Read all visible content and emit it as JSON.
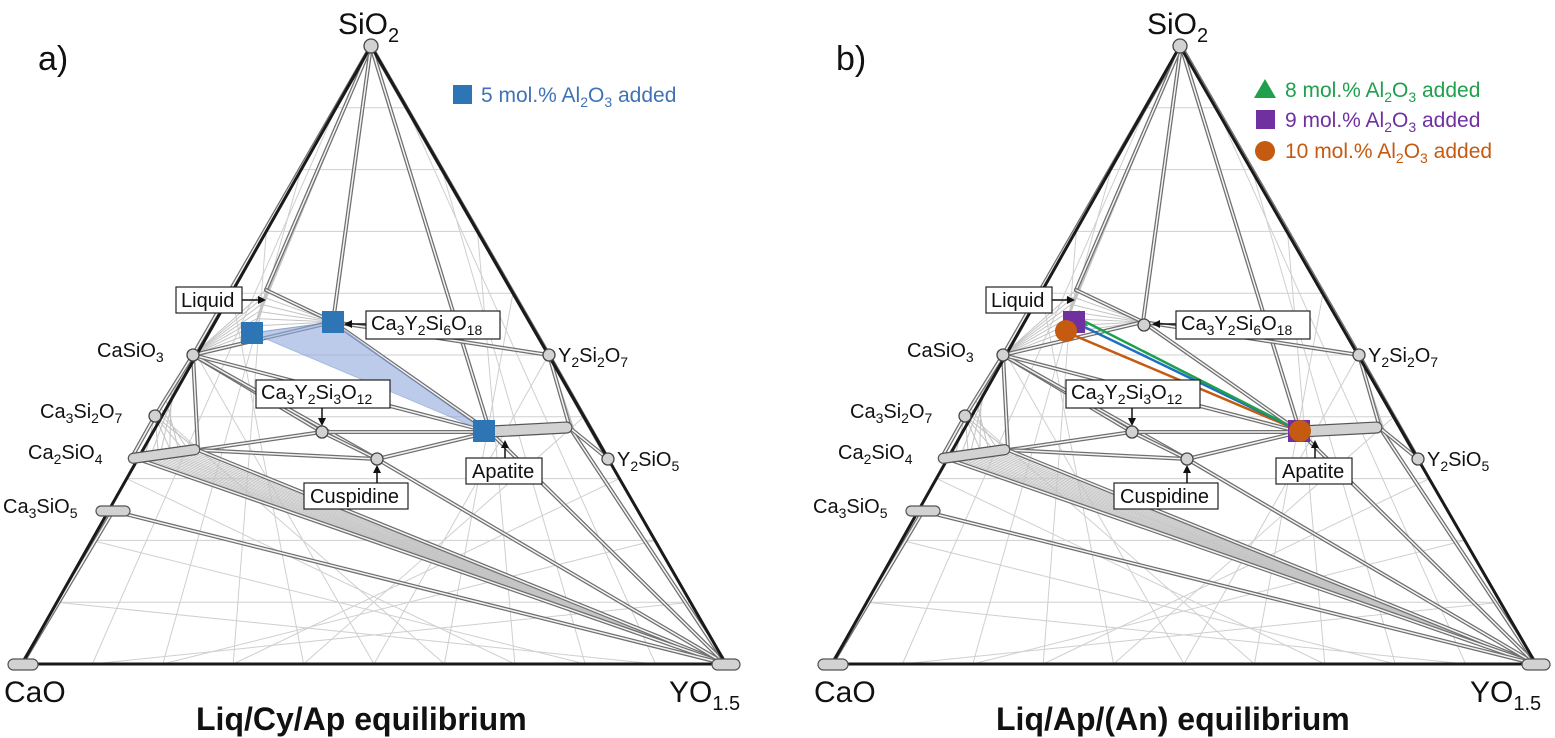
{
  "panels": [
    {
      "panel_label": "a)",
      "title": "Liq/Cy/Ap equilibrium",
      "corners": {
        "top_main": "SiO",
        "top_sub": "2",
        "left": "CaO",
        "right_main": "YO",
        "right_sub": "1.5"
      },
      "phases": {
        "casio3": {
          "a": "CaSiO",
          "b": "3"
        },
        "ca3si2o7": {
          "a": "Ca",
          "b": "3",
          "c": "Si",
          "d": "2",
          "e": "O",
          "f": "7"
        },
        "ca2sio4": {
          "a": "Ca",
          "b": "2",
          "c": "SiO",
          "d": "4"
        },
        "ca3sio5": {
          "a": "Ca",
          "b": "3",
          "c": "SiO",
          "d": "5"
        },
        "y2si2o7": {
          "a": "Y",
          "b": "2",
          "c": "Si",
          "d": "2",
          "e": "O",
          "f": "7"
        },
        "y2sio5": {
          "a": "Y",
          "b": "2",
          "c": "SiO",
          "d": "5"
        }
      },
      "boxes": {
        "liquid": "Liquid",
        "ca3y2si6o18": {
          "a": "Ca",
          "b": "3",
          "c": "Y",
          "d": "2",
          "e": "Si",
          "f": "6",
          "g": "O",
          "h": "18"
        },
        "ca3y2si3o12": {
          "a": "Ca",
          "b": "3",
          "c": "Y",
          "d": "2",
          "e": "Si",
          "f": "3",
          "g": "O",
          "h": "12"
        },
        "cuspidine": "Cuspidine",
        "apatite": "Apatite"
      },
      "legend": [
        {
          "pre": "5 mol.% Al",
          "s1": "2",
          "mid": "O",
          "s2": "3",
          "post": " added",
          "color": "#3f72b8",
          "marker": "square"
        }
      ]
    },
    {
      "panel_label": "b)",
      "title": "Liq/Ap/(An) equilibrium",
      "corners": {
        "top_main": "SiO",
        "top_sub": "2",
        "left": "CaO",
        "right_main": "YO",
        "right_sub": "1.5"
      },
      "phases": {
        "casio3": {
          "a": "CaSiO",
          "b": "3"
        },
        "ca3si2o7": {
          "a": "Ca",
          "b": "3",
          "c": "Si",
          "d": "2",
          "e": "O",
          "f": "7"
        },
        "ca2sio4": {
          "a": "Ca",
          "b": "2",
          "c": "SiO",
          "d": "4"
        },
        "ca3sio5": {
          "a": "Ca",
          "b": "3",
          "c": "SiO",
          "d": "5"
        },
        "y2si2o7": {
          "a": "Y",
          "b": "2",
          "c": "Si",
          "d": "2",
          "e": "O",
          "f": "7"
        },
        "y2sio5": {
          "a": "Y",
          "b": "2",
          "c": "SiO",
          "d": "5"
        }
      },
      "boxes": {
        "liquid": "Liquid",
        "ca3y2si6o18": {
          "a": "Ca",
          "b": "3",
          "c": "Y",
          "d": "2",
          "e": "Si",
          "f": "6",
          "g": "O",
          "h": "18"
        },
        "ca3y2si3o12": {
          "a": "Ca",
          "b": "3",
          "c": "Y",
          "d": "2",
          "e": "Si",
          "f": "3",
          "g": "O",
          "h": "12"
        },
        "cuspidine": "Cuspidine",
        "apatite": "Apatite"
      },
      "legend": [
        {
          "pre": "8 mol.% Al",
          "s1": "2",
          "mid": "O",
          "s2": "3",
          "post": " added",
          "color": "#1ea04c",
          "marker": "triangle"
        },
        {
          "pre": "9 mol.% Al",
          "s1": "2",
          "mid": "O",
          "s2": "3",
          "post": " added",
          "color": "#7030a0",
          "marker": "square"
        },
        {
          "pre": "10 mol.% Al",
          "s1": "2",
          "mid": "O",
          "s2": "3",
          "post": " added",
          "color": "#c55a11",
          "marker": "circle"
        }
      ]
    }
  ]
}
